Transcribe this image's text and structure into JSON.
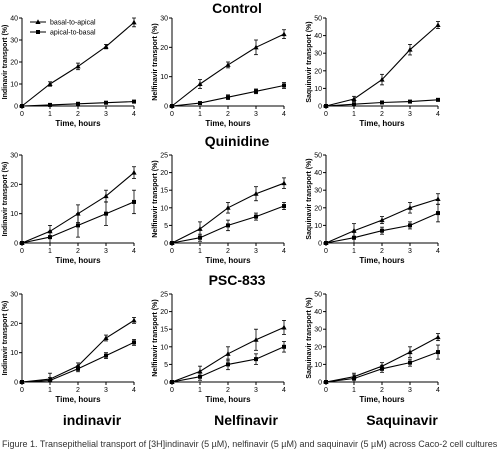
{
  "row_titles": [
    "Control",
    "Quinidine",
    "PSC-833"
  ],
  "column_labels": [
    "indinavir",
    "Nelfinavir",
    "Saquinavir"
  ],
  "caption": "Figure 1. Transepithelial transport of [3H]indinavir (5 µM), nelfinavir (5 µM) and saquinavir (5 µM) across Caco-2 cell cultures",
  "legend": {
    "series": [
      "basal-to-apical",
      "apical-to-basal"
    ],
    "placement": "top-left of first panel"
  },
  "colors": {
    "ink": "#000000",
    "grid": "none"
  },
  "chart_data": [
    {
      "type": "line",
      "row": "Control",
      "title": "",
      "xlabel": "Time, hours",
      "ylabel": "Indinavir transport (%)",
      "xlim": [
        0,
        4
      ],
      "ylim": [
        0,
        40
      ],
      "yticks": [
        0,
        10,
        20,
        30,
        40
      ],
      "x": [
        0,
        1,
        2,
        3,
        4
      ],
      "series": [
        {
          "name": "basal-to-apical",
          "marker": "triangle",
          "values": [
            0,
            10,
            18,
            27,
            38
          ],
          "err": [
            0,
            1,
            1.5,
            1,
            2
          ]
        },
        {
          "name": "apical-to-basal",
          "marker": "square",
          "values": [
            0,
            0.5,
            1,
            1.5,
            2
          ],
          "err": [
            0,
            0.2,
            0.2,
            0.3,
            0.3
          ]
        }
      ]
    },
    {
      "type": "line",
      "row": "Control",
      "title": "",
      "xlabel": "Time, hours",
      "ylabel": "Nelfinavir transport (%)",
      "xlim": [
        0,
        4
      ],
      "ylim": [
        0,
        30
      ],
      "yticks": [
        0,
        10,
        20,
        30
      ],
      "x": [
        0,
        1,
        2,
        3,
        4
      ],
      "series": [
        {
          "name": "basal-to-apical",
          "marker": "triangle",
          "values": [
            0,
            7.5,
            14,
            20,
            24.5
          ],
          "err": [
            0,
            1.5,
            1,
            2.5,
            1.5
          ]
        },
        {
          "name": "apical-to-basal",
          "marker": "square",
          "values": [
            0,
            1,
            3,
            5,
            7
          ],
          "err": [
            0,
            0.3,
            0.8,
            0.8,
            1
          ]
        }
      ]
    },
    {
      "type": "line",
      "row": "Control",
      "title": "",
      "xlabel": "Time, hours",
      "ylabel": "Saquinavir transport (%)",
      "xlim": [
        0,
        4
      ],
      "ylim": [
        0,
        50
      ],
      "yticks": [
        0,
        10,
        20,
        30,
        40,
        50
      ],
      "x": [
        0,
        1,
        2,
        3,
        4
      ],
      "series": [
        {
          "name": "basal-to-apical",
          "marker": "triangle",
          "values": [
            0,
            4,
            15,
            32,
            46
          ],
          "err": [
            0,
            1.5,
            3,
            3,
            2
          ]
        },
        {
          "name": "apical-to-basal",
          "marker": "square",
          "values": [
            0,
            1,
            2,
            2.5,
            3.5
          ],
          "err": [
            0,
            0.3,
            0.4,
            0.4,
            0.5
          ]
        }
      ]
    },
    {
      "type": "line",
      "row": "Quinidine",
      "title": "",
      "xlabel": "Time, hours",
      "ylabel": "Indinavir transport (%)",
      "xlim": [
        0,
        4
      ],
      "ylim": [
        0,
        30
      ],
      "yticks": [
        0,
        10,
        20,
        30
      ],
      "x": [
        0,
        1,
        2,
        3,
        4
      ],
      "series": [
        {
          "name": "basal-to-apical",
          "marker": "triangle",
          "values": [
            0,
            4,
            10,
            16,
            24
          ],
          "err": [
            0,
            2,
            3,
            2,
            2
          ]
        },
        {
          "name": "apical-to-basal",
          "marker": "square",
          "values": [
            0,
            2,
            6,
            10,
            14
          ],
          "err": [
            0,
            2,
            4,
            4,
            4
          ]
        }
      ]
    },
    {
      "type": "line",
      "row": "Quinidine",
      "title": "",
      "xlabel": "Time, hours",
      "ylabel": "Nelfinavir transport (%)",
      "xlim": [
        0,
        4
      ],
      "ylim": [
        0,
        25
      ],
      "yticks": [
        0,
        5,
        10,
        15,
        20,
        25
      ],
      "x": [
        0,
        1,
        2,
        3,
        4
      ],
      "series": [
        {
          "name": "basal-to-apical",
          "marker": "triangle",
          "values": [
            0,
            4,
            10,
            14,
            17
          ],
          "err": [
            0,
            2,
            1.5,
            2,
            1.5
          ]
        },
        {
          "name": "apical-to-basal",
          "marker": "square",
          "values": [
            0,
            1.5,
            5,
            7.5,
            10.5
          ],
          "err": [
            0,
            1,
            1.5,
            1,
            1
          ]
        }
      ]
    },
    {
      "type": "line",
      "row": "Quinidine",
      "title": "",
      "xlabel": "Time, hours",
      "ylabel": "Saquinavir transport (%)",
      "xlim": [
        0,
        4
      ],
      "ylim": [
        0,
        50
      ],
      "yticks": [
        0,
        10,
        20,
        30,
        40,
        50
      ],
      "x": [
        0,
        1,
        2,
        3,
        4
      ],
      "series": [
        {
          "name": "basal-to-apical",
          "marker": "triangle",
          "values": [
            0,
            7,
            13,
            20,
            25
          ],
          "err": [
            0,
            4,
            2,
            3,
            3
          ]
        },
        {
          "name": "apical-to-basal",
          "marker": "square",
          "values": [
            0,
            3,
            7,
            10,
            17
          ],
          "err": [
            0,
            3,
            2,
            2,
            5
          ]
        }
      ]
    },
    {
      "type": "line",
      "row": "PSC-833",
      "title": "",
      "xlabel": "Time, hours",
      "ylabel": "Indinavir transport (%)",
      "xlim": [
        0,
        4
      ],
      "ylim": [
        0,
        30
      ],
      "yticks": [
        0,
        10,
        20,
        30
      ],
      "x": [
        0,
        1,
        2,
        3,
        4
      ],
      "series": [
        {
          "name": "basal-to-apical",
          "marker": "triangle",
          "values": [
            0,
            1,
            5.5,
            15,
            21
          ],
          "err": [
            0,
            2,
            1,
            1,
            1
          ]
        },
        {
          "name": "apical-to-basal",
          "marker": "square",
          "values": [
            0,
            0.5,
            4.5,
            9,
            13.5
          ],
          "err": [
            0,
            1,
            1,
            1,
            1
          ]
        }
      ]
    },
    {
      "type": "line",
      "row": "PSC-833",
      "title": "",
      "xlabel": "Time, hours",
      "ylabel": "Nelfinavir transport (%)",
      "xlim": [
        0,
        4
      ],
      "ylim": [
        0,
        25
      ],
      "yticks": [
        0,
        5,
        10,
        15,
        20,
        25
      ],
      "x": [
        0,
        1,
        2,
        3,
        4
      ],
      "series": [
        {
          "name": "basal-to-apical",
          "marker": "triangle",
          "values": [
            0,
            3,
            8,
            12,
            15.5
          ],
          "err": [
            0,
            1.5,
            2,
            3,
            2
          ]
        },
        {
          "name": "apical-to-basal",
          "marker": "square",
          "values": [
            0,
            1.5,
            5,
            6.5,
            10
          ],
          "err": [
            0,
            1,
            1.5,
            1.5,
            1.5
          ]
        }
      ]
    },
    {
      "type": "line",
      "row": "PSC-833",
      "title": "",
      "xlabel": "Time, hours",
      "ylabel": "Saquinavir transport (%)",
      "xlim": [
        0,
        4
      ],
      "ylim": [
        0,
        50
      ],
      "yticks": [
        0,
        10,
        20,
        30,
        40,
        50
      ],
      "x": [
        0,
        1,
        2,
        3,
        4
      ],
      "series": [
        {
          "name": "basal-to-apical",
          "marker": "triangle",
          "values": [
            0,
            3,
            9,
            17,
            25.5
          ],
          "err": [
            0,
            2,
            2,
            3,
            2
          ]
        },
        {
          "name": "apical-to-basal",
          "marker": "square",
          "values": [
            0,
            2,
            7.5,
            11,
            17
          ],
          "err": [
            0,
            2,
            2,
            2,
            4
          ]
        }
      ]
    }
  ]
}
